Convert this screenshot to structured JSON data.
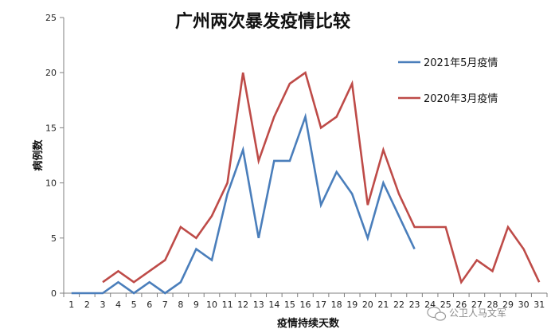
{
  "chart_data": {
    "type": "line",
    "title": "广州两次暴发疫情比较",
    "xlabel": "疫情持续天数",
    "ylabel": "病例数",
    "x": [
      1,
      2,
      3,
      4,
      5,
      6,
      7,
      8,
      9,
      10,
      11,
      12,
      13,
      14,
      15,
      16,
      17,
      18,
      19,
      20,
      21,
      22,
      23,
      24,
      25,
      26,
      27,
      28,
      29,
      30,
      31
    ],
    "ylim": [
      0,
      25
    ],
    "yticks": [
      0,
      5,
      10,
      15,
      20,
      25
    ],
    "grid": false,
    "legend_position": "top-right",
    "series": [
      {
        "name": "2021年5月疫情",
        "color": "#4a7ebb",
        "x": [
          1,
          2,
          3,
          4,
          5,
          6,
          7,
          8,
          9,
          10,
          11,
          12,
          13,
          14,
          15,
          16,
          17,
          18,
          19,
          20,
          21,
          22,
          23
        ],
        "values": [
          0,
          0,
          0,
          1,
          0,
          1,
          0,
          1,
          4,
          3,
          9,
          13,
          5,
          12,
          12,
          16,
          8,
          11,
          9,
          5,
          10,
          7,
          4
        ]
      },
      {
        "name": "2020年3月疫情",
        "color": "#be4b48",
        "x": [
          3,
          4,
          5,
          6,
          7,
          8,
          9,
          10,
          11,
          12,
          13,
          14,
          15,
          16,
          17,
          18,
          19,
          20,
          21,
          22,
          23,
          24,
          25,
          26,
          27,
          28,
          29,
          30,
          31
        ],
        "values": [
          1,
          2,
          1,
          2,
          3,
          6,
          5,
          7,
          10,
          20,
          12,
          16,
          19,
          20,
          15,
          16,
          19,
          8,
          13,
          9,
          6,
          6,
          6,
          1,
          3,
          2,
          6,
          4,
          1
        ]
      }
    ]
  },
  "watermark": {
    "text": "公卫人马文军",
    "icon": "wechat-bubble-icon"
  }
}
